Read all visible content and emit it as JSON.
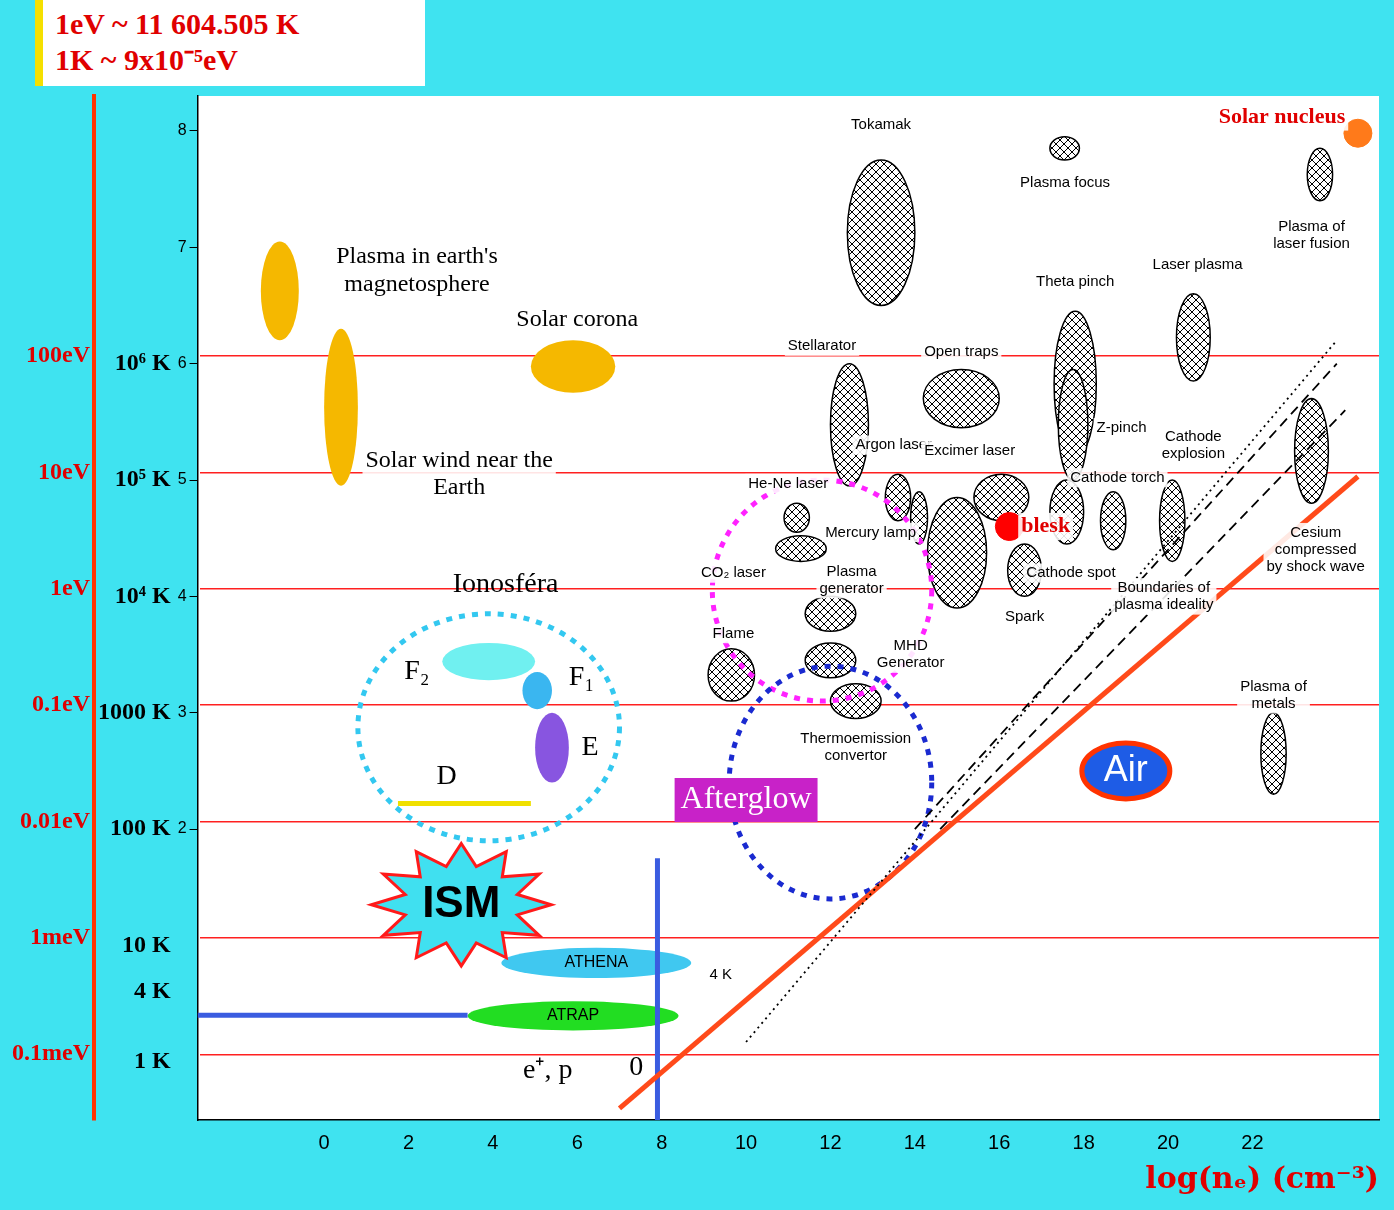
{
  "header": {
    "lines": [
      "1eV ~ 11 604.505 K",
      "1K ~ 9x10⁻⁵eV"
    ]
  },
  "chart_data": {
    "type": "scatter",
    "x_label": "log(nₑ) (cm⁻³)",
    "xlim": [
      -3,
      25
    ],
    "xticks": [
      0,
      2,
      4,
      6,
      8,
      10,
      12,
      14,
      16,
      18,
      20,
      22
    ],
    "ylim": [
      -0.5,
      8.3
    ],
    "yticks": [
      {
        "value": 0,
        "label": "1 K"
      },
      {
        "value": 0.602,
        "label": "4 K"
      },
      {
        "value": 1,
        "label": "10 K"
      },
      {
        "value": 2,
        "label": "100 K"
      },
      {
        "value": 3,
        "label": "1000 K"
      },
      {
        "value": 4,
        "label": "10⁴ K"
      },
      {
        "value": 5,
        "label": "10⁵ K"
      },
      {
        "value": 6,
        "label": "10⁶ K"
      }
    ],
    "y2lim": [
      -0.5,
      8.3
    ],
    "y2ticks": [
      {
        "value": 0.065,
        "label": "0.1meV"
      },
      {
        "value": 1.065,
        "label": "1meV"
      },
      {
        "value": 2.065,
        "label": "0.01eV"
      },
      {
        "value": 3.065,
        "label": "0.1eV"
      },
      {
        "value": 4.065,
        "label": "1eV"
      },
      {
        "value": 5.065,
        "label": "10eV"
      },
      {
        "value": 6.065,
        "label": "100eV"
      }
    ],
    "y3lim": [
      -0.5,
      8.3
    ],
    "y3ticks": [
      2,
      3,
      4,
      5,
      6,
      7,
      8
    ],
    "grid": true,
    "regions": [
      {
        "name": "Tokamak",
        "x": [
          12.4,
          14.0
        ],
        "y": [
          6.5,
          7.75
        ],
        "marker": "crosshatch",
        "label_at": [
          13.2,
          8.05
        ]
      },
      {
        "name": "Plasma focus",
        "x": [
          17.2,
          17.9
        ],
        "y": [
          7.75,
          7.95
        ],
        "marker": "crosshatch",
        "label_at": [
          17.56,
          7.55
        ]
      },
      {
        "name": "Plasma of laser fusion",
        "x": [
          23.3,
          23.9
        ],
        "y": [
          7.4,
          7.85
        ],
        "marker": "crosshatch",
        "label_at": [
          23.4,
          7.1
        ]
      },
      {
        "name": "Laser plasma",
        "x": [
          20.2,
          21.0
        ],
        "y": [
          5.85,
          6.6
        ],
        "marker": "crosshatch",
        "label_at": [
          20.7,
          6.85
        ]
      },
      {
        "name": "Theta pinch",
        "x": [
          17.3,
          18.3
        ],
        "y": [
          5.2,
          6.45
        ],
        "marker": "crosshatch",
        "label_at": [
          17.8,
          6.7
        ]
      },
      {
        "name": "Stellarator",
        "x": [
          12.0,
          12.9
        ],
        "y": [
          4.95,
          6.0
        ],
        "marker": "crosshatch",
        "label_at": [
          11.8,
          6.15
        ]
      },
      {
        "name": "Open traps",
        "x": [
          14.2,
          16.0
        ],
        "y": [
          5.45,
          5.95
        ],
        "marker": "crosshatch",
        "label_at": [
          15.1,
          6.1
        ]
      },
      {
        "name": "Z-pinch",
        "x": [
          17.4,
          18.1
        ],
        "y": [
          5.0,
          5.95
        ],
        "marker": "crosshatch",
        "label_at": [
          18.9,
          5.45
        ]
      },
      {
        "name": "Argon laser",
        "x": [
          13.3,
          13.9
        ],
        "y": [
          4.65,
          5.05
        ],
        "marker": "crosshatch",
        "label_at": [
          13.5,
          5.3
        ]
      },
      {
        "name": "Excimer laser",
        "x": [
          15.4,
          16.7
        ],
        "y": [
          4.65,
          5.05
        ],
        "marker": "crosshatch",
        "label_at": [
          15.3,
          5.25
        ]
      },
      {
        "name": "Mercury lamp",
        "x": [
          13.9,
          14.3
        ],
        "y": [
          4.45,
          4.9
        ],
        "marker": "crosshatch",
        "label_at": [
          12.95,
          4.55
        ]
      },
      {
        "x": [
          14.3,
          15.7
        ],
        "y": [
          3.9,
          4.85
        ],
        "marker": "crosshatch"
      },
      {
        "name": "He-Ne laser",
        "x": [
          10.9,
          11.5
        ],
        "y": [
          4.55,
          4.8
        ],
        "marker": "crosshatch",
        "label_at": [
          11.0,
          4.97
        ]
      },
      {
        "name": "CO₂ laser",
        "x": [
          10.7,
          11.9
        ],
        "y": [
          4.3,
          4.52
        ],
        "marker": "crosshatch",
        "label_at": [
          9.7,
          4.2
        ]
      },
      {
        "name": "Plasma generator",
        "x": [
          11.4,
          12.6
        ],
        "y": [
          3.7,
          4.0
        ],
        "marker": "crosshatch",
        "label_at": [
          12.5,
          4.14
        ]
      },
      {
        "name": "Flame",
        "x": [
          9.1,
          10.2
        ],
        "y": [
          3.1,
          3.55
        ],
        "marker": "crosshatch",
        "label_at": [
          9.7,
          3.68
        ]
      },
      {
        "name": "MHD Generator",
        "x": [
          11.4,
          12.6
        ],
        "y": [
          3.3,
          3.6
        ],
        "marker": "crosshatch",
        "label_at": [
          13.9,
          3.5
        ]
      },
      {
        "name": "Thermoemission convertor",
        "x": [
          12.0,
          13.2
        ],
        "y": [
          2.95,
          3.25
        ],
        "marker": "crosshatch",
        "label_at": [
          12.6,
          2.7
        ]
      },
      {
        "name": "Cathode torch",
        "x": [
          18.4,
          19.0
        ],
        "y": [
          4.4,
          4.9
        ],
        "marker": "crosshatch",
        "label_at": [
          18.8,
          5.02
        ]
      },
      {
        "name": "Cathode spot",
        "x": [
          17.2,
          18.0
        ],
        "y": [
          4.45,
          5.0
        ],
        "marker": "crosshatch",
        "label_at": [
          17.7,
          4.2
        ]
      },
      {
        "name": "Spark",
        "x": [
          16.2,
          17.0
        ],
        "y": [
          4.0,
          4.45
        ],
        "marker": "crosshatch",
        "label_at": [
          16.6,
          3.82
        ]
      },
      {
        "name": "Cathode explosion",
        "x": [
          19.8,
          20.4
        ],
        "y": [
          4.3,
          5.0
        ],
        "marker": "crosshatch",
        "label_at": [
          20.6,
          5.3
        ]
      },
      {
        "name": "Cesium compressed by shock wave",
        "x": [
          23.0,
          23.8
        ],
        "y": [
          4.8,
          5.7
        ],
        "marker": "crosshatch",
        "label_at": [
          23.5,
          4.4
        ]
      },
      {
        "name": "Plasma of metals",
        "x": [
          22.2,
          22.8
        ],
        "y": [
          2.3,
          3.0
        ],
        "marker": "crosshatch",
        "label_at": [
          22.5,
          3.15
        ]
      },
      {
        "name": "Plasma in earth's magnetosphere",
        "x": [
          -1.5,
          -0.6
        ],
        "y": [
          6.2,
          7.05
        ],
        "color": "#f5b800",
        "label_at": [
          2.2,
          6.8
        ]
      },
      {
        "name": "Solar corona",
        "x": [
          4.9,
          6.9
        ],
        "y": [
          5.75,
          6.2
        ],
        "color": "#f5b800",
        "label_at": [
          6.0,
          6.38
        ]
      },
      {
        "name": "Solar wind near the Earth",
        "x": [
          0.0,
          0.8
        ],
        "y": [
          4.95,
          6.3
        ],
        "color": "#f5b800",
        "label_at": [
          3.2,
          5.05
        ]
      },
      {
        "x": [
          2.8,
          5.0
        ],
        "y": [
          3.28,
          3.6
        ],
        "color": "#70f0f0"
      },
      {
        "x": [
          4.7,
          5.4
        ],
        "y": [
          3.03,
          3.35
        ],
        "color": "#3ab6f0"
      },
      {
        "x": [
          5.0,
          5.8
        ],
        "y": [
          2.4,
          3.0
        ],
        "color": "#8855e0"
      },
      {
        "name": "ATHENA",
        "x": [
          4.2,
          8.7
        ],
        "y": [
          0.72,
          0.98
        ],
        "color": "#40c8f0",
        "label_at": [
          6.45,
          0.85
        ]
      },
      {
        "name": "ATRAP",
        "x": [
          3.4,
          8.4
        ],
        "y": [
          0.27,
          0.52
        ],
        "color": "#22dd22",
        "label_at": [
          5.9,
          0.4
        ]
      },
      {
        "x": [
          9.2,
          14.4
        ],
        "y": [
          3.1,
          5.0
        ],
        "color": "#ff22ff",
        "line_style": "dotted"
      },
      {
        "x": [
          9.6,
          14.4
        ],
        "y": [
          1.4,
          3.4
        ],
        "color": "#1a2ad0",
        "line_style": "dotted"
      },
      {
        "x": [
          0.8,
          7.0
        ],
        "y": [
          1.9,
          3.85
        ],
        "color": "#33c8f0",
        "line_style": "dotted"
      }
    ],
    "points": [
      {
        "name": "blesk",
        "x": 16.24,
        "y": 4.6,
        "color": "#ff0000",
        "label_at": [
          17.1,
          4.6
        ]
      },
      {
        "name": "Solar nucleus",
        "x": 24.5,
        "y": 7.98,
        "color": "#ff7a1a",
        "label_at": [
          22.7,
          8.12
        ]
      }
    ],
    "lines": [
      {
        "points": [
          [
            10,
            0.17
          ],
          [
            24,
            6.2
          ]
        ],
        "color": "#000000",
        "line_style": "dotted"
      },
      {
        "points": [
          [
            14.0,
            2.0
          ],
          [
            24,
            6.0
          ]
        ],
        "color": "#000000",
        "line_style": "dashed"
      },
      {
        "points": [
          [
            14.6,
            2.0
          ],
          [
            24.2,
            5.6
          ]
        ],
        "color": "#000000",
        "line_style": "dashed"
      },
      {
        "points": [
          [
            7,
            -0.4
          ],
          [
            24.5,
            5.03
          ]
        ],
        "color": "#ff4a1a",
        "line_style": "solid"
      },
      {
        "points": [
          [
            1.75,
            2.22
          ],
          [
            4.9,
            2.22
          ]
        ],
        "color": "#f0e000",
        "line_style": "solid"
      },
      {
        "points": [
          [
            -3,
            0.4
          ],
          [
            3.4,
            0.4
          ]
        ],
        "color": "#3a5ce0",
        "line_style": "solid"
      },
      {
        "points": [
          [
            7.9,
            -0.5
          ],
          [
            7.9,
            1.75
          ]
        ],
        "color": "#3a5ce0",
        "line_style": "solid"
      }
    ],
    "annotations": [
      {
        "text": "Ionosféra",
        "x": 4.3,
        "y": 4.1
      },
      {
        "text": "F₂",
        "x": 2.2,
        "y": 3.35
      },
      {
        "text": "F₁",
        "x": 6.1,
        "y": 3.3
      },
      {
        "text": "E",
        "x": 6.3,
        "y": 2.7
      },
      {
        "text": "D",
        "x": 2.9,
        "y": 2.45
      },
      {
        "text": "ISM",
        "x": 3.25,
        "y": 1.35,
        "marker": "star",
        "color": "#40e0f0"
      },
      {
        "text": "e⁺, p",
        "x": 5.3,
        "y": -0.08
      },
      {
        "text": "4 K",
        "x": 9.4,
        "y": 0.75
      },
      {
        "text": "0",
        "x": 7.4,
        "y": -0.05
      },
      {
        "text": "Afterglow",
        "x": 10.0,
        "y": 2.25,
        "marker": "box",
        "color": "#c822c8"
      },
      {
        "text": "Air",
        "x": 19.0,
        "y": 2.5,
        "marker": "oval",
        "color": "#1e5ce6"
      },
      {
        "text": "Boundaries of plasma ideality",
        "x": 19.9,
        "y": 4.0
      }
    ]
  }
}
